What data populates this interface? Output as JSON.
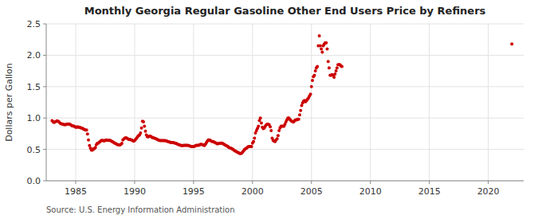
{
  "chart_data": {
    "type": "scatter",
    "title": "Monthly Georgia Regular Gasoline Other End Users Price by Refiners",
    "ylabel": "Dollars per Gallon",
    "source": "Source: U.S. Energy Information Administration",
    "color": "#cc0000",
    "grid": true,
    "xlim": [
      1982.5,
      2023.0
    ],
    "ylim": [
      0.0,
      2.5
    ],
    "xticks": [
      1985,
      1990,
      1995,
      2000,
      2005,
      2010,
      2015,
      2020
    ],
    "yticks": [
      {
        "value": 0.0,
        "label": "0.0"
      },
      0.5,
      {
        "value": 1.0,
        "label": "1.0"
      },
      1.5,
      {
        "value": 2.0,
        "label": "2.0"
      },
      2.5
    ],
    "x": [
      1983.0,
      1983.083,
      1983.167,
      1983.25,
      1983.333,
      1983.417,
      1983.5,
      1983.583,
      1983.667,
      1983.75,
      1983.833,
      1983.917,
      1984.0,
      1984.083,
      1984.167,
      1984.25,
      1984.333,
      1984.417,
      1984.5,
      1984.583,
      1984.667,
      1984.75,
      1984.833,
      1984.917,
      1985.0,
      1985.083,
      1985.167,
      1985.25,
      1985.333,
      1985.417,
      1985.5,
      1985.583,
      1985.667,
      1985.75,
      1985.833,
      1985.917,
      1986.0,
      1986.083,
      1986.167,
      1986.25,
      1986.333,
      1986.417,
      1986.5,
      1986.583,
      1986.667,
      1986.75,
      1986.833,
      1986.917,
      1987.0,
      1987.083,
      1987.167,
      1987.25,
      1987.333,
      1987.417,
      1987.5,
      1987.583,
      1987.667,
      1987.75,
      1987.833,
      1987.917,
      1988.0,
      1988.083,
      1988.167,
      1988.25,
      1988.333,
      1988.417,
      1988.5,
      1988.583,
      1988.667,
      1988.75,
      1988.833,
      1988.917,
      1989.0,
      1989.083,
      1989.167,
      1989.25,
      1989.333,
      1989.417,
      1989.5,
      1989.583,
      1989.667,
      1989.75,
      1989.833,
      1989.917,
      1990.0,
      1990.083,
      1990.167,
      1990.25,
      1990.333,
      1990.417,
      1990.5,
      1990.583,
      1990.667,
      1990.75,
      1990.833,
      1990.917,
      1991.0,
      1991.083,
      1991.167,
      1991.25,
      1991.333,
      1991.417,
      1991.5,
      1991.583,
      1991.667,
      1991.75,
      1991.833,
      1991.917,
      1992.0,
      1992.083,
      1992.167,
      1992.25,
      1992.333,
      1992.417,
      1992.5,
      1992.583,
      1992.667,
      1992.75,
      1992.833,
      1992.917,
      1993.0,
      1993.083,
      1993.167,
      1993.25,
      1993.333,
      1993.417,
      1993.5,
      1993.583,
      1993.667,
      1993.75,
      1993.833,
      1993.917,
      1994.0,
      1994.083,
      1994.167,
      1994.25,
      1994.333,
      1994.417,
      1994.5,
      1994.583,
      1994.667,
      1994.75,
      1994.833,
      1994.917,
      1995.0,
      1995.083,
      1995.167,
      1995.25,
      1995.333,
      1995.417,
      1995.5,
      1995.583,
      1995.667,
      1995.75,
      1995.833,
      1995.917,
      1996.0,
      1996.083,
      1996.167,
      1996.25,
      1996.333,
      1996.417,
      1996.5,
      1996.583,
      1996.667,
      1996.75,
      1996.833,
      1996.917,
      1997.0,
      1997.083,
      1997.167,
      1997.25,
      1997.333,
      1997.417,
      1997.5,
      1997.583,
      1997.667,
      1997.75,
      1997.833,
      1997.917,
      1998.0,
      1998.083,
      1998.167,
      1998.25,
      1998.333,
      1998.417,
      1998.5,
      1998.583,
      1998.667,
      1998.75,
      1998.833,
      1998.917,
      1999.0,
      1999.083,
      1999.167,
      1999.25,
      1999.333,
      1999.417,
      1999.5,
      1999.583,
      1999.667,
      1999.75,
      1999.833,
      1999.917,
      2000.0,
      2000.083,
      2000.167,
      2000.25,
      2000.333,
      2000.417,
      2000.5,
      2000.583,
      2000.667,
      2000.75,
      2000.833,
      2000.917,
      2001.0,
      2001.083,
      2001.167,
      2001.25,
      2001.333,
      2001.417,
      2001.5,
      2001.583,
      2001.667,
      2001.75,
      2001.833,
      2001.917,
      2002.0,
      2002.083,
      2002.167,
      2002.25,
      2002.333,
      2002.417,
      2002.5,
      2002.583,
      2002.667,
      2002.75,
      2002.833,
      2002.917,
      2003.0,
      2003.083,
      2003.167,
      2003.25,
      2003.333,
      2003.417,
      2003.5,
      2003.583,
      2003.667,
      2003.75,
      2003.833,
      2003.917,
      2004.0,
      2004.083,
      2004.167,
      2004.25,
      2004.333,
      2004.417,
      2004.5,
      2004.583,
      2004.667,
      2004.75,
      2004.833,
      2004.917,
      2005.0,
      2005.083,
      2005.167,
      2005.25,
      2005.333,
      2005.417,
      2005.5,
      2005.583,
      2005.667,
      2005.75,
      2005.833,
      2005.917,
      2006.0,
      2006.083,
      2006.167,
      2006.25,
      2006.333,
      2006.417,
      2006.5,
      2006.583,
      2006.667,
      2006.75,
      2006.833,
      2006.917,
      2007.0,
      2007.083,
      2007.167,
      2007.25,
      2007.333,
      2007.417,
      2007.5,
      2007.583,
      2022.0
    ],
    "values": [
      0.957,
      0.94,
      0.93,
      0.94,
      0.945,
      0.955,
      0.95,
      0.94,
      0.92,
      0.91,
      0.905,
      0.905,
      0.895,
      0.895,
      0.895,
      0.905,
      0.905,
      0.905,
      0.9,
      0.89,
      0.88,
      0.875,
      0.87,
      0.865,
      0.855,
      0.855,
      0.86,
      0.855,
      0.855,
      0.845,
      0.84,
      0.835,
      0.825,
      0.815,
      0.81,
      0.81,
      0.745,
      0.65,
      0.56,
      0.52,
      0.49,
      0.49,
      0.51,
      0.51,
      0.53,
      0.575,
      0.595,
      0.6,
      0.615,
      0.625,
      0.64,
      0.645,
      0.64,
      0.635,
      0.645,
      0.65,
      0.645,
      0.645,
      0.645,
      0.645,
      0.635,
      0.625,
      0.62,
      0.605,
      0.595,
      0.59,
      0.58,
      0.575,
      0.57,
      0.57,
      0.58,
      0.595,
      0.65,
      0.665,
      0.68,
      0.685,
      0.68,
      0.67,
      0.66,
      0.66,
      0.655,
      0.65,
      0.64,
      0.63,
      0.64,
      0.66,
      0.68,
      0.7,
      0.72,
      0.73,
      0.76,
      0.84,
      0.95,
      0.94,
      0.87,
      0.79,
      0.73,
      0.7,
      0.7,
      0.71,
      0.71,
      0.7,
      0.69,
      0.685,
      0.68,
      0.675,
      0.665,
      0.66,
      0.65,
      0.645,
      0.64,
      0.64,
      0.64,
      0.64,
      0.64,
      0.64,
      0.635,
      0.63,
      0.625,
      0.62,
      0.615,
      0.61,
      0.61,
      0.61,
      0.605,
      0.6,
      0.595,
      0.59,
      0.58,
      0.575,
      0.57,
      0.565,
      0.56,
      0.56,
      0.565,
      0.565,
      0.565,
      0.565,
      0.565,
      0.56,
      0.555,
      0.55,
      0.545,
      0.545,
      0.545,
      0.55,
      0.56,
      0.565,
      0.565,
      0.565,
      0.57,
      0.58,
      0.58,
      0.575,
      0.57,
      0.56,
      0.58,
      0.605,
      0.63,
      0.65,
      0.65,
      0.645,
      0.63,
      0.625,
      0.625,
      0.615,
      0.61,
      0.6,
      0.59,
      0.59,
      0.595,
      0.6,
      0.6,
      0.6,
      0.59,
      0.58,
      0.57,
      0.56,
      0.555,
      0.545,
      0.53,
      0.525,
      0.52,
      0.51,
      0.5,
      0.49,
      0.48,
      0.47,
      0.46,
      0.455,
      0.445,
      0.435,
      0.435,
      0.44,
      0.46,
      0.48,
      0.5,
      0.51,
      0.52,
      0.535,
      0.545,
      0.545,
      0.545,
      0.545,
      0.6,
      0.625,
      0.68,
      0.76,
      0.8,
      0.835,
      0.87,
      0.96,
      1.0,
      0.92,
      0.855,
      0.83,
      0.84,
      0.87,
      0.89,
      0.9,
      0.9,
      0.89,
      0.86,
      0.8,
      0.68,
      0.645,
      0.63,
      0.625,
      0.65,
      0.67,
      0.72,
      0.8,
      0.84,
      0.87,
      0.87,
      0.87,
      0.87,
      0.9,
      0.94,
      0.97,
      1.0,
      1.0,
      0.98,
      0.96,
      0.95,
      0.94,
      0.94,
      0.96,
      0.97,
      0.97,
      0.98,
      0.98,
      1.05,
      1.12,
      1.2,
      1.24,
      1.27,
      1.28,
      1.26,
      1.28,
      1.3,
      1.32,
      1.35,
      1.38,
      1.5,
      1.6,
      1.66,
      1.68,
      1.75,
      1.8,
      1.82,
      2.15,
      2.31,
      2.15,
      2.1,
      2.05,
      2.15,
      2.18,
      2.2,
      2.2,
      2.1,
      1.9,
      1.8,
      1.68,
      1.68,
      1.69,
      1.68,
      1.65,
      1.7,
      1.75,
      1.8,
      1.85,
      1.85,
      1.85,
      1.83,
      1.82,
      2.18
    ]
  }
}
